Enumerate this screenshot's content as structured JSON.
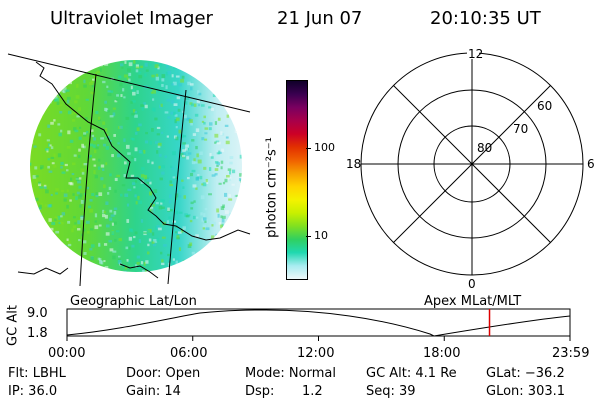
{
  "header": {
    "title": "Ultraviolet Imager",
    "date": "21 Jun 07",
    "time": "20:10:35 UT"
  },
  "colorbar": {
    "unit_label": "photon cm⁻²s⁻¹",
    "ticks": [
      "100",
      "10"
    ],
    "colors_top_to_bottom": [
      "#10002a",
      "#3a0050",
      "#7a0060",
      "#a8004a",
      "#cc0026",
      "#e23000",
      "#f06000",
      "#f7a000",
      "#ffd400",
      "#f4f200",
      "#c8f000",
      "#80e020",
      "#30d060",
      "#20d8b0",
      "#a8ecf0",
      "#eef8fa"
    ]
  },
  "polar_grid": {
    "mlt_labels": {
      "top": "12",
      "left": "18",
      "right": "6",
      "bottom": "0"
    },
    "lat_labels": [
      "80",
      "70",
      "60"
    ]
  },
  "timeline": {
    "left_label": "Geographic Lat/Lon",
    "right_label": "Apex MLat/MLT",
    "axis_title": "GC Alt",
    "y_ticks": [
      "9.0",
      "1.8"
    ],
    "x_ticks": [
      "00:00",
      "06:00",
      "12:00",
      "18:00",
      "23:59"
    ],
    "current_time_fraction": 0.84,
    "marker_color": "#dd0000"
  },
  "footer": {
    "flt": "Flt: LBHL",
    "ip": "IP: 36.0",
    "door": "Door: Open",
    "gain": "Gain: 14",
    "mode": "Mode: Normal",
    "dsp": "Dsp:",
    "dsp_val": "1.2",
    "gcalt": "GC Alt: 4.1 Re",
    "seq": "Seq: 39",
    "glat": "GLat: −36.2",
    "glon": "GLon: 303.1"
  }
}
